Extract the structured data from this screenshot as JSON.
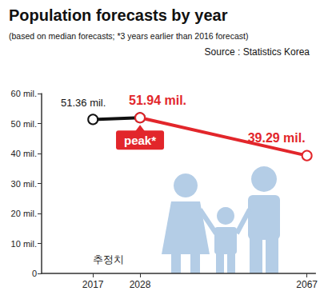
{
  "chart_data": {
    "type": "line",
    "title": "Population forecasts by year",
    "subtitle": "(based on median forecasts; *3 years earlier than 2016 forecast)",
    "source": "Source : Statistics Korea",
    "x": [
      2017,
      2028,
      2067
    ],
    "xlim": [
      2005,
      2069
    ],
    "xticks": [
      2017,
      2028,
      2067
    ],
    "ylim": [
      0,
      60
    ],
    "yticks": [
      0,
      {
        "value": 10,
        "label": "10 mil."
      },
      {
        "value": 20,
        "label": "20 mil."
      },
      {
        "value": 30,
        "label": "30 mil."
      },
      {
        "value": 40,
        "label": "40 mil."
      },
      {
        "value": 50,
        "label": "50 mil."
      },
      {
        "value": 60,
        "label": "60 mil."
      }
    ],
    "grid": false,
    "data_labels": true,
    "series": [
      {
        "color": "#111111",
        "marker": "emptyCircle",
        "values": [
          51.36,
          51.94,
          null
        ],
        "value_labels": [
          "51.36 mil.",
          null,
          null
        ]
      },
      {
        "color": "#e2262b",
        "marker": "emptyCircle",
        "values": [
          null,
          51.94,
          39.29
        ],
        "value_labels": [
          null,
          "51.94 mil.",
          "39.29 mil."
        ]
      }
    ],
    "annotations": [
      {
        "text": "peak*",
        "x": 2028
      },
      {
        "text": "추정치",
        "x": 2017
      }
    ]
  }
}
